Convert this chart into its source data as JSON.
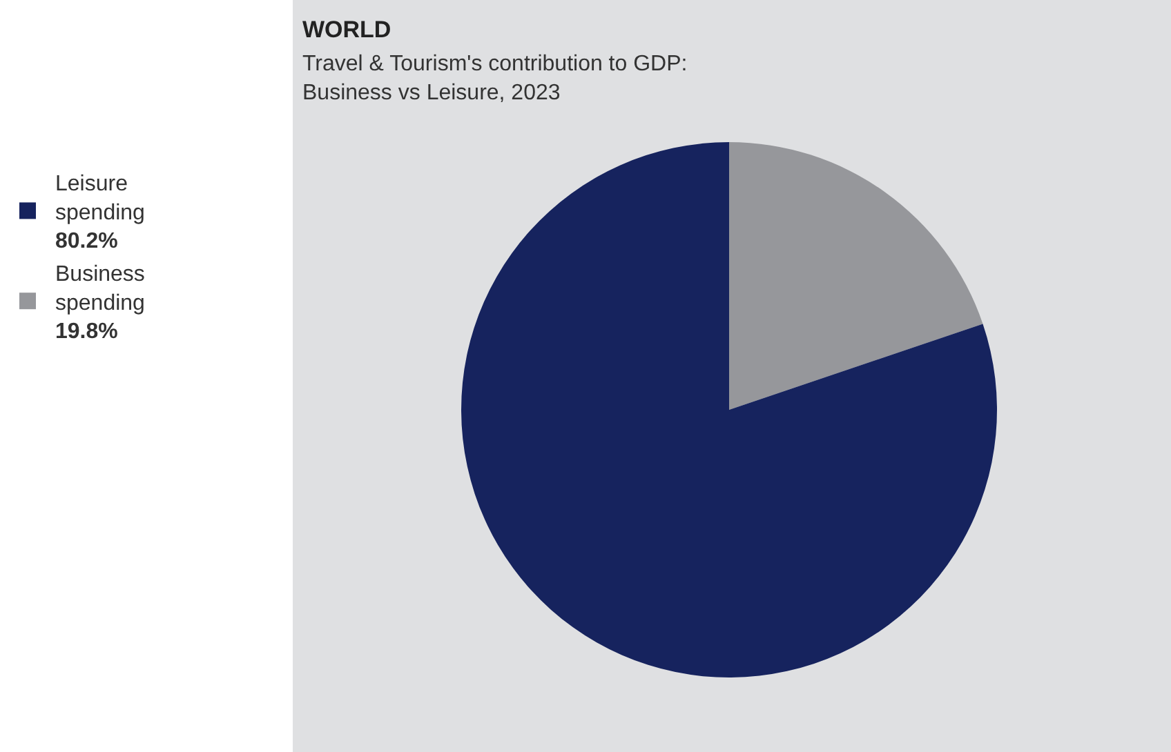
{
  "chart_data": {
    "type": "pie",
    "title": "WORLD",
    "subtitle": "Travel & Tourism's contribution to GDP:\nBusiness vs Leisure, 2023",
    "categories": [
      "Leisure spending",
      "Business spending"
    ],
    "values": [
      80.2,
      19.8
    ],
    "colors": [
      "#16235e",
      "#96979b"
    ],
    "value_labels": [
      "80.2%",
      "19.8%"
    ],
    "legend": "left"
  }
}
